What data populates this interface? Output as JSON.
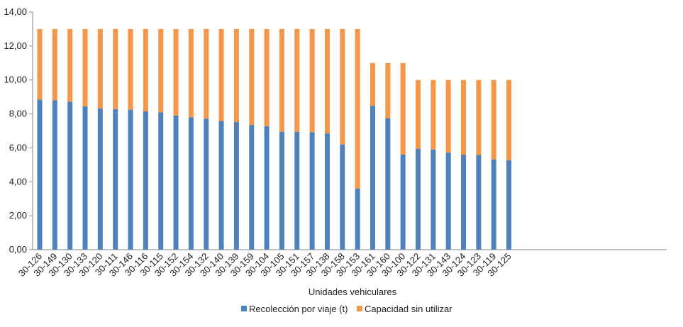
{
  "chart_data": {
    "type": "bar",
    "stacked": true,
    "xlabel": "Unidades vehiculares",
    "ylabel": "",
    "ylim": [
      0,
      14
    ],
    "yticks": [
      "0,00",
      "2,00",
      "4,00",
      "6,00",
      "8,00",
      "10,00",
      "12,00",
      "14,00"
    ],
    "grid": false,
    "legend_position": "bottom",
    "categories": [
      "30-126",
      "30-149",
      "30-130",
      "30-133",
      "30-120",
      "30-111",
      "30-146",
      "30-116",
      "30-115",
      "30-152",
      "30-154",
      "30-132",
      "30-140",
      "30-139",
      "30-159",
      "30-104",
      "30-105",
      "30-151",
      "30-157",
      "30-138",
      "30-158",
      "30-153",
      "30-161",
      "30-160",
      "30-100",
      "30-122",
      "30-131",
      "30-143",
      "30-124",
      "30-123",
      "30-119",
      "30-125"
    ],
    "series": [
      {
        "name": "Recolección por viaje (t)",
        "color": "#4f81bd",
        "values": [
          8.85,
          8.8,
          8.72,
          8.45,
          8.32,
          8.28,
          8.25,
          8.15,
          8.1,
          7.9,
          7.8,
          7.72,
          7.58,
          7.52,
          7.35,
          7.28,
          6.95,
          6.95,
          6.92,
          6.85,
          6.2,
          3.6,
          8.48,
          7.75,
          5.6,
          5.95,
          5.9,
          5.72,
          5.6,
          5.58,
          5.32,
          5.28
        ]
      },
      {
        "name": "Capacidad sin utilizar",
        "color": "#f79646",
        "values": [
          4.15,
          4.2,
          4.28,
          4.55,
          4.68,
          4.72,
          4.75,
          4.85,
          4.9,
          5.1,
          5.2,
          5.28,
          5.42,
          5.48,
          5.65,
          5.72,
          6.05,
          6.05,
          6.08,
          6.15,
          6.8,
          9.4,
          2.52,
          3.25,
          5.4,
          4.05,
          4.1,
          4.28,
          4.4,
          4.42,
          4.68,
          4.72
        ]
      }
    ]
  }
}
